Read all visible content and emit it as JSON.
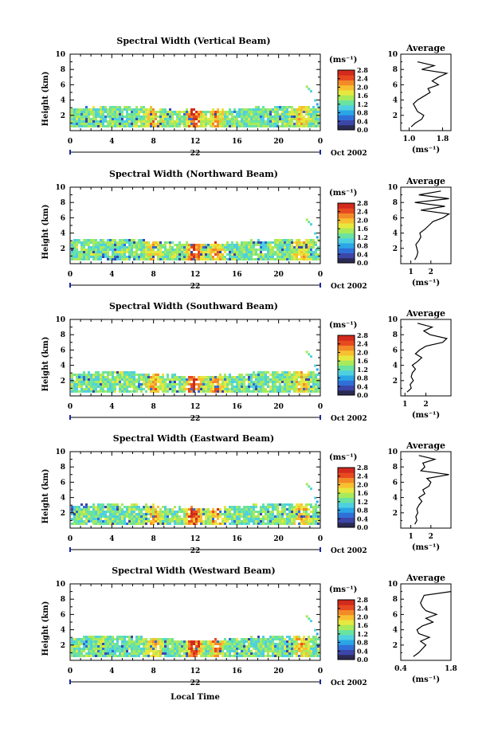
{
  "x_axis_label": "Local Time",
  "colors": {
    "colorbar": [
      "#2a2a55",
      "#3c46a8",
      "#2f6fd8",
      "#2aa5e6",
      "#4fd0e0",
      "#6ae3a0",
      "#a8ea5a",
      "#e6e840",
      "#f8c030",
      "#f38a28",
      "#e84a20",
      "#d22a1c"
    ]
  },
  "chart_data": [
    {
      "type": "heatmap",
      "title": "Spectral Width (Vertical Beam)",
      "ylabel": "Height (km)",
      "xlabel": "",
      "x_ticks": [
        "0",
        "4",
        "8",
        "12",
        "16",
        "20",
        "0"
      ],
      "y_ticks": [
        "2",
        "4",
        "6",
        "8",
        "10"
      ],
      "xlim": [
        0,
        24
      ],
      "ylim": [
        0,
        10
      ],
      "day_label": "22",
      "date_label": "Oct 2002",
      "colorbar": {
        "unit": "(ms⁻¹)",
        "ticks": [
          "2.8",
          "2.4",
          "2.0",
          "1.6",
          "1.2",
          "0.8",
          "0.4",
          "0.0"
        ],
        "range": [
          0,
          2.8
        ]
      },
      "average": {
        "title": "Average",
        "xlabel": "(ms⁻¹)",
        "x_ticks": [
          "1.0",
          "1.8"
        ],
        "y_ticks": [
          "2",
          "4",
          "6",
          "8",
          "10"
        ],
        "xlim": [
          0.8,
          2.0
        ],
        "ylim": [
          0,
          10
        ],
        "profile": [
          [
            0.5,
            1.05
          ],
          [
            1.0,
            1.15
          ],
          [
            1.5,
            1.3
          ],
          [
            2.0,
            1.35
          ],
          [
            2.5,
            1.2
          ],
          [
            3.0,
            1.15
          ],
          [
            3.5,
            1.1
          ],
          [
            4.0,
            1.2
          ],
          [
            4.5,
            1.35
          ],
          [
            5.0,
            1.5
          ],
          [
            5.5,
            1.45
          ],
          [
            6.0,
            1.7
          ],
          [
            6.5,
            1.55
          ],
          [
            7.0,
            1.7
          ],
          [
            7.5,
            1.9
          ],
          [
            8.0,
            1.3
          ],
          [
            8.5,
            1.6
          ],
          [
            9.0,
            1.2
          ]
        ]
      }
    },
    {
      "type": "heatmap",
      "title": "Spectral Width (Northward Beam)",
      "ylabel": "Height (km)",
      "xlabel": "",
      "x_ticks": [
        "0",
        "4",
        "8",
        "12",
        "16",
        "20",
        "0"
      ],
      "y_ticks": [
        "2",
        "4",
        "6",
        "8",
        "10"
      ],
      "xlim": [
        0,
        24
      ],
      "ylim": [
        0,
        10
      ],
      "day_label": "22",
      "date_label": "Oct 2002",
      "colorbar": {
        "unit": "(ms⁻¹)",
        "ticks": [
          "2.8",
          "2.4",
          "2.0",
          "1.6",
          "1.2",
          "0.8",
          "0.4",
          "0.0"
        ],
        "range": [
          0,
          2.8
        ]
      },
      "average": {
        "title": "Average",
        "xlabel": "(ms⁻¹)",
        "x_ticks": [
          "1",
          "2"
        ],
        "y_ticks": [
          "2",
          "4",
          "6",
          "8",
          "10"
        ],
        "xlim": [
          0.5,
          3.0
        ],
        "ylim": [
          0,
          10
        ],
        "profile": [
          [
            0.5,
            1.2
          ],
          [
            1.0,
            1.3
          ],
          [
            1.5,
            1.35
          ],
          [
            2.0,
            1.3
          ],
          [
            2.5,
            1.25
          ],
          [
            3.0,
            1.4
          ],
          [
            3.5,
            1.5
          ],
          [
            4.0,
            1.45
          ],
          [
            4.5,
            1.7
          ],
          [
            5.0,
            1.9
          ],
          [
            5.5,
            2.1
          ],
          [
            6.0,
            2.6
          ],
          [
            6.5,
            2.9
          ],
          [
            7.0,
            1.5
          ],
          [
            7.5,
            2.7
          ],
          [
            8.0,
            1.2
          ],
          [
            8.5,
            2.9
          ],
          [
            9.0,
            1.4
          ],
          [
            9.5,
            2.5
          ]
        ]
      }
    },
    {
      "type": "heatmap",
      "title": "Spectral Width (Southward Beam)",
      "ylabel": "Height (km)",
      "xlabel": "",
      "x_ticks": [
        "0",
        "4",
        "8",
        "12",
        "16",
        "20",
        "0"
      ],
      "y_ticks": [
        "2",
        "4",
        "6",
        "8",
        "10"
      ],
      "xlim": [
        0,
        24
      ],
      "ylim": [
        0,
        10
      ],
      "day_label": "22",
      "date_label": "Oct 2002",
      "colorbar": {
        "unit": "(ms⁻¹)",
        "ticks": [
          "2.8",
          "2.4",
          "2.0",
          "1.6",
          "1.2",
          "0.8",
          "0.4",
          "0.0"
        ],
        "range": [
          0,
          2.8
        ]
      },
      "average": {
        "title": "Average",
        "xlabel": "(ms⁻¹)",
        "x_ticks": [
          "1",
          "2"
        ],
        "y_ticks": [
          "2",
          "4",
          "6",
          "8",
          "10"
        ],
        "xlim": [
          0.8,
          3.2
        ],
        "ylim": [
          0,
          10
        ],
        "profile": [
          [
            0.5,
            1.1
          ],
          [
            1.0,
            1.3
          ],
          [
            1.5,
            1.25
          ],
          [
            2.0,
            1.4
          ],
          [
            2.5,
            1.3
          ],
          [
            3.0,
            1.35
          ],
          [
            3.5,
            1.5
          ],
          [
            4.0,
            1.35
          ],
          [
            4.5,
            1.6
          ],
          [
            5.0,
            1.8
          ],
          [
            5.5,
            1.5
          ],
          [
            6.0,
            1.7
          ],
          [
            6.5,
            2.0
          ],
          [
            7.0,
            2.8
          ],
          [
            7.5,
            3.0
          ],
          [
            8.0,
            2.2
          ],
          [
            8.5,
            1.9
          ],
          [
            9.0,
            2.3
          ],
          [
            9.5,
            1.6
          ]
        ]
      }
    },
    {
      "type": "heatmap",
      "title": "Spectral Width (Eastward Beam)",
      "ylabel": "Height (km)",
      "xlabel": "",
      "x_ticks": [
        "0",
        "4",
        "8",
        "12",
        "16",
        "20",
        "0"
      ],
      "y_ticks": [
        "2",
        "4",
        "6",
        "8",
        "10"
      ],
      "xlim": [
        0,
        24
      ],
      "ylim": [
        0,
        10
      ],
      "day_label": "22",
      "date_label": "Oct 2002",
      "colorbar": {
        "unit": "(ms⁻¹)",
        "ticks": [
          "2.8",
          "2.4",
          "2.0",
          "1.6",
          "1.2",
          "0.8",
          "0.4",
          "0.0"
        ],
        "range": [
          0,
          2.8
        ]
      },
      "average": {
        "title": "Average",
        "xlabel": "(ms⁻¹)",
        "x_ticks": [
          "1",
          "2"
        ],
        "y_ticks": [
          "2",
          "4",
          "6",
          "8",
          "10"
        ],
        "xlim": [
          0.5,
          3.0
        ],
        "ylim": [
          0,
          10
        ],
        "profile": [
          [
            0.5,
            1.2
          ],
          [
            1.0,
            1.3
          ],
          [
            1.5,
            1.25
          ],
          [
            2.0,
            1.35
          ],
          [
            2.5,
            1.3
          ],
          [
            3.0,
            1.4
          ],
          [
            3.5,
            1.55
          ],
          [
            4.0,
            1.4
          ],
          [
            4.5,
            1.7
          ],
          [
            5.0,
            1.6
          ],
          [
            5.5,
            1.9
          ],
          [
            6.0,
            2.0
          ],
          [
            6.5,
            1.8
          ],
          [
            7.0,
            2.9
          ],
          [
            7.5,
            1.5
          ],
          [
            8.0,
            1.7
          ],
          [
            8.5,
            1.6
          ],
          [
            9.0,
            2.2
          ],
          [
            9.5,
            1.4
          ]
        ]
      }
    },
    {
      "type": "heatmap",
      "title": "Spectral Width (Westward Beam)",
      "ylabel": "Height (km)",
      "xlabel": "",
      "x_ticks": [
        "0",
        "4",
        "8",
        "12",
        "16",
        "20",
        "0"
      ],
      "y_ticks": [
        "2",
        "4",
        "6",
        "8",
        "10"
      ],
      "xlim": [
        0,
        24
      ],
      "ylim": [
        0,
        10
      ],
      "day_label": "22",
      "date_label": "Oct 2002",
      "colorbar": {
        "unit": "(ms⁻¹)",
        "ticks": [
          "2.8",
          "2.4",
          "2.0",
          "1.6",
          "1.2",
          "0.8",
          "0.4",
          "0.0"
        ],
        "range": [
          0,
          2.8
        ]
      },
      "average": {
        "title": "Average",
        "xlabel": "(ms⁻¹)",
        "x_ticks": [
          "0.4",
          "1.8"
        ],
        "y_ticks": [
          "2",
          "4",
          "6",
          "8",
          "10"
        ],
        "xlim": [
          0.4,
          1.8
        ],
        "ylim": [
          0,
          10
        ],
        "profile": [
          [
            0.5,
            0.75
          ],
          [
            1.0,
            0.9
          ],
          [
            1.5,
            1.0
          ],
          [
            2.0,
            1.1
          ],
          [
            2.5,
            0.95
          ],
          [
            3.0,
            1.2
          ],
          [
            3.5,
            0.9
          ],
          [
            4.0,
            0.85
          ],
          [
            4.5,
            1.0
          ],
          [
            5.0,
            1.3
          ],
          [
            5.5,
            1.1
          ],
          [
            6.0,
            1.4
          ],
          [
            6.5,
            1.1
          ],
          [
            7.0,
            1.0
          ],
          [
            7.5,
            0.95
          ],
          [
            8.0,
            1.0
          ],
          [
            8.5,
            1.05
          ],
          [
            9.0,
            1.8
          ]
        ]
      }
    }
  ]
}
